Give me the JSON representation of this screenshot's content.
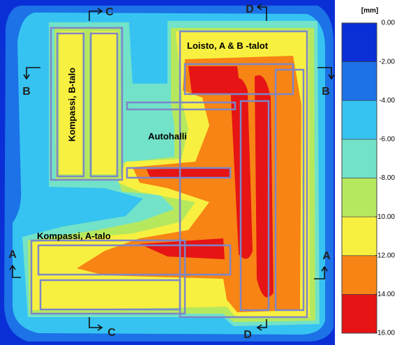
{
  "labels": {
    "b_talo": "Kompassi, B-talo",
    "autohalli": "Autohalli",
    "loisto": "Loisto, A & B -talot",
    "a_talo": "Kompassi, A-talo"
  },
  "sections": {
    "a_left": "A",
    "a_right": "A",
    "b_left": "B",
    "b_right": "B",
    "c_top": "C",
    "c_bottom": "C",
    "d_top": "D",
    "d_bottom": "D"
  },
  "colorbar": {
    "unit": "[mm]",
    "ticks": [
      {
        "value": 0,
        "label": "0.00"
      },
      {
        "value": -2,
        "label": "-2.00"
      },
      {
        "value": -4,
        "label": "-4.00"
      },
      {
        "value": -6,
        "label": "-6.00"
      },
      {
        "value": -8,
        "label": "-8.00"
      },
      {
        "value": -10,
        "label": "-10.00"
      },
      {
        "value": -12,
        "label": "-12.00"
      },
      {
        "value": -14,
        "label": "-14.00"
      },
      {
        "value": -16,
        "label": "-16.00"
      }
    ],
    "colors": [
      "#0a2fd6",
      "#1c72e6",
      "#36c3f2",
      "#72e2c8",
      "#b6e85e",
      "#f8f040",
      "#f78414",
      "#e61414"
    ]
  }
}
